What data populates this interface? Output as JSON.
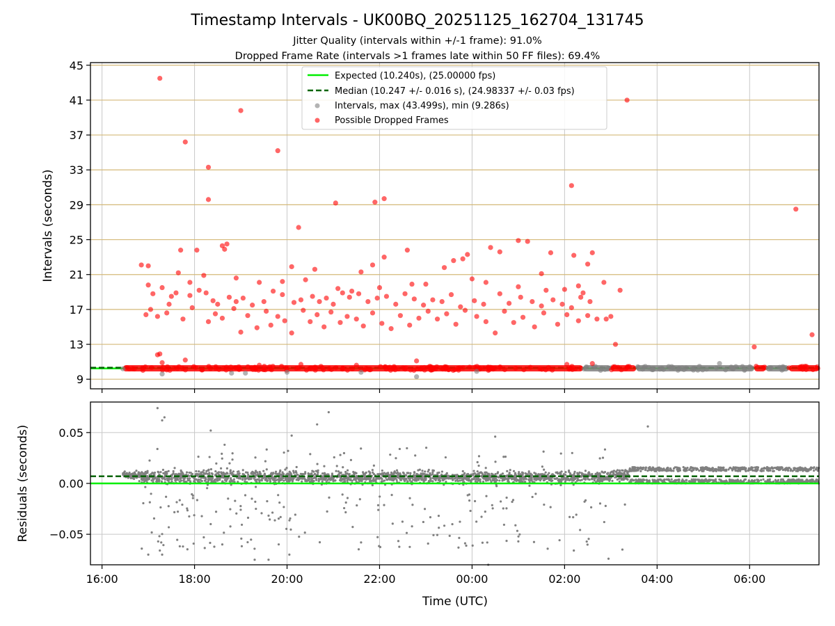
{
  "figure": {
    "title": "Timestamp Intervals - UK00BQ_20251125_162704_131745",
    "subtitle_line1": "Jitter Quality (intervals within +/-1 frame): 91.0%",
    "subtitle_line2": "Dropped Frame Rate (intervals >1 frames late within 50 FF files): 69.4%",
    "x_label": "Time (UTC)",
    "x_ticks": [
      "16:00",
      "18:00",
      "20:00",
      "22:00",
      "00:00",
      "02:00",
      "04:00",
      "06:00"
    ]
  },
  "colors": {
    "expected": "#00ee00",
    "median": "#006400",
    "interval_points": "#808080",
    "dropped_points": "#ff0000",
    "y_grid_top": "#d4b978",
    "grid": "#c8c8c8"
  },
  "chart_data": [
    {
      "type": "scatter",
      "name": "intervals-panel",
      "ylabel": "Intervals (seconds)",
      "xlim_hours": [
        15.75,
        31.5
      ],
      "ylim": [
        7.9,
        45.3
      ],
      "y_ticks": [
        9,
        13,
        17,
        21,
        25,
        29,
        33,
        37,
        41,
        45
      ],
      "grid": "both",
      "legend_position": "top-center",
      "legend": {
        "expected": "Expected (10.240s), (25.00000 fps)",
        "median": "Median (10.247 +/- 0.016 s), (24.98337 +/- 0.03 fps)",
        "intervals": "Intervals, max (43.499s), min (9.286s)",
        "dropped": "Possible Dropped Frames"
      },
      "expected_interval": 10.24,
      "median_interval": 10.247,
      "dense_band": [
        {
          "x_start": 16.45,
          "x_end": 26.4,
          "y": 10.25,
          "series": "dropped"
        },
        {
          "x_start": 26.4,
          "x_end": 27.0,
          "y": 10.25,
          "series": "intervals"
        },
        {
          "x_start": 27.0,
          "x_end": 27.55,
          "y": 10.25,
          "series": "dropped"
        },
        {
          "x_start": 27.55,
          "x_end": 30.1,
          "y": 10.25,
          "series": "intervals"
        },
        {
          "x_start": 30.1,
          "x_end": 30.35,
          "y": 10.25,
          "series": "dropped"
        },
        {
          "x_start": 30.35,
          "x_end": 30.85,
          "y": 10.25,
          "series": "intervals"
        },
        {
          "x_start": 30.85,
          "x_end": 31.5,
          "y": 10.25,
          "series": "dropped"
        }
      ],
      "interval_points": [
        {
          "x": 17.3,
          "y": 9.6
        },
        {
          "x": 18.8,
          "y": 9.7
        },
        {
          "x": 19.1,
          "y": 9.7
        },
        {
          "x": 20.0,
          "y": 9.8
        },
        {
          "x": 21.6,
          "y": 9.8
        },
        {
          "x": 22.8,
          "y": 9.29
        },
        {
          "x": 24.1,
          "y": 9.9
        },
        {
          "x": 29.35,
          "y": 10.8
        },
        {
          "x": 16.45,
          "y": 10.2
        }
      ],
      "dropped_points": [
        {
          "x": 17.25,
          "y": 43.5
        },
        {
          "x": 17.8,
          "y": 36.2
        },
        {
          "x": 18.3,
          "y": 33.3
        },
        {
          "x": 18.3,
          "y": 29.6
        },
        {
          "x": 19.0,
          "y": 39.8
        },
        {
          "x": 19.8,
          "y": 35.2
        },
        {
          "x": 20.25,
          "y": 26.4
        },
        {
          "x": 21.05,
          "y": 29.2
        },
        {
          "x": 21.9,
          "y": 29.3
        },
        {
          "x": 22.1,
          "y": 29.7
        },
        {
          "x": 26.15,
          "y": 31.2
        },
        {
          "x": 27.35,
          "y": 41.0
        },
        {
          "x": 30.1,
          "y": 12.7
        },
        {
          "x": 31.0,
          "y": 28.5
        },
        {
          "x": 31.35,
          "y": 14.1
        },
        {
          "x": 27.1,
          "y": 13.0
        },
        {
          "x": 27.2,
          "y": 19.2
        },
        {
          "x": 26.9,
          "y": 15.9
        },
        {
          "x": 26.85,
          "y": 20.1
        },
        {
          "x": 27.0,
          "y": 16.2
        },
        {
          "x": 25.0,
          "y": 24.9
        },
        {
          "x": 25.2,
          "y": 24.8
        },
        {
          "x": 24.4,
          "y": 24.1
        },
        {
          "x": 24.6,
          "y": 23.6
        },
        {
          "x": 23.9,
          "y": 23.3
        },
        {
          "x": 22.6,
          "y": 23.8
        },
        {
          "x": 23.8,
          "y": 22.8
        },
        {
          "x": 25.7,
          "y": 23.5
        },
        {
          "x": 26.2,
          "y": 23.2
        },
        {
          "x": 26.6,
          "y": 23.5
        },
        {
          "x": 16.85,
          "y": 22.1
        },
        {
          "x": 17.0,
          "y": 22.0
        },
        {
          "x": 17.65,
          "y": 21.2
        },
        {
          "x": 17.7,
          "y": 23.8
        },
        {
          "x": 18.05,
          "y": 23.8
        },
        {
          "x": 18.6,
          "y": 24.3
        },
        {
          "x": 18.7,
          "y": 24.5
        },
        {
          "x": 18.65,
          "y": 23.9
        },
        {
          "x": 20.1,
          "y": 21.9
        },
        {
          "x": 20.6,
          "y": 21.6
        },
        {
          "x": 21.6,
          "y": 21.3
        },
        {
          "x": 21.85,
          "y": 22.1
        },
        {
          "x": 22.1,
          "y": 23.0
        },
        {
          "x": 23.4,
          "y": 21.8
        },
        {
          "x": 23.6,
          "y": 22.6
        },
        {
          "x": 25.5,
          "y": 21.1
        },
        {
          "x": 26.5,
          "y": 22.2
        },
        {
          "x": 17.9,
          "y": 20.1
        },
        {
          "x": 18.2,
          "y": 20.9
        },
        {
          "x": 18.9,
          "y": 20.6
        },
        {
          "x": 19.4,
          "y": 20.1
        },
        {
          "x": 19.9,
          "y": 20.2
        },
        {
          "x": 20.4,
          "y": 20.4
        },
        {
          "x": 21.1,
          "y": 19.4
        },
        {
          "x": 21.4,
          "y": 19.1
        },
        {
          "x": 22.0,
          "y": 19.5
        },
        {
          "x": 22.7,
          "y": 19.9
        },
        {
          "x": 23.0,
          "y": 19.9
        },
        {
          "x": 24.0,
          "y": 20.5
        },
        {
          "x": 24.3,
          "y": 20.1
        },
        {
          "x": 25.0,
          "y": 19.6
        },
        {
          "x": 25.6,
          "y": 19.2
        },
        {
          "x": 26.0,
          "y": 19.3
        },
        {
          "x": 26.3,
          "y": 19.7
        },
        {
          "x": 26.4,
          "y": 18.9
        },
        {
          "x": 17.0,
          "y": 19.8
        },
        {
          "x": 17.1,
          "y": 18.8
        },
        {
          "x": 17.3,
          "y": 19.5
        },
        {
          "x": 17.5,
          "y": 18.5
        },
        {
          "x": 17.45,
          "y": 17.6
        },
        {
          "x": 17.6,
          "y": 18.9
        },
        {
          "x": 17.9,
          "y": 18.6
        },
        {
          "x": 18.1,
          "y": 19.2
        },
        {
          "x": 18.25,
          "y": 18.9
        },
        {
          "x": 18.4,
          "y": 18.0
        },
        {
          "x": 18.5,
          "y": 17.6
        },
        {
          "x": 18.75,
          "y": 18.4
        },
        {
          "x": 18.9,
          "y": 17.9
        },
        {
          "x": 19.05,
          "y": 18.3
        },
        {
          "x": 19.25,
          "y": 17.5
        },
        {
          "x": 19.5,
          "y": 17.9
        },
        {
          "x": 19.7,
          "y": 19.1
        },
        {
          "x": 19.9,
          "y": 18.7
        },
        {
          "x": 20.15,
          "y": 17.8
        },
        {
          "x": 20.3,
          "y": 18.1
        },
        {
          "x": 20.55,
          "y": 18.5
        },
        {
          "x": 20.7,
          "y": 17.9
        },
        {
          "x": 20.85,
          "y": 18.3
        },
        {
          "x": 21.0,
          "y": 17.6
        },
        {
          "x": 21.2,
          "y": 18.9
        },
        {
          "x": 21.35,
          "y": 18.4
        },
        {
          "x": 21.55,
          "y": 18.8
        },
        {
          "x": 21.75,
          "y": 17.9
        },
        {
          "x": 21.95,
          "y": 18.3
        },
        {
          "x": 22.15,
          "y": 18.5
        },
        {
          "x": 22.35,
          "y": 17.6
        },
        {
          "x": 22.55,
          "y": 18.8
        },
        {
          "x": 22.75,
          "y": 18.2
        },
        {
          "x": 22.95,
          "y": 17.5
        },
        {
          "x": 23.15,
          "y": 18.1
        },
        {
          "x": 23.35,
          "y": 17.9
        },
        {
          "x": 23.55,
          "y": 18.7
        },
        {
          "x": 23.75,
          "y": 17.3
        },
        {
          "x": 24.05,
          "y": 18.0
        },
        {
          "x": 24.25,
          "y": 17.6
        },
        {
          "x": 24.6,
          "y": 18.8
        },
        {
          "x": 24.8,
          "y": 17.7
        },
        {
          "x": 25.05,
          "y": 18.4
        },
        {
          "x": 25.3,
          "y": 17.9
        },
        {
          "x": 25.5,
          "y": 17.4
        },
        {
          "x": 25.75,
          "y": 18.1
        },
        {
          "x": 25.95,
          "y": 17.6
        },
        {
          "x": 26.15,
          "y": 17.2
        },
        {
          "x": 26.35,
          "y": 18.4
        },
        {
          "x": 26.55,
          "y": 17.9
        },
        {
          "x": 16.95,
          "y": 16.4
        },
        {
          "x": 17.05,
          "y": 17.0
        },
        {
          "x": 17.2,
          "y": 16.2
        },
        {
          "x": 17.4,
          "y": 16.6
        },
        {
          "x": 17.75,
          "y": 15.9
        },
        {
          "x": 17.95,
          "y": 17.2
        },
        {
          "x": 18.3,
          "y": 15.6
        },
        {
          "x": 18.45,
          "y": 16.5
        },
        {
          "x": 18.6,
          "y": 16.0
        },
        {
          "x": 18.85,
          "y": 17.1
        },
        {
          "x": 19.0,
          "y": 14.4
        },
        {
          "x": 19.15,
          "y": 16.3
        },
        {
          "x": 19.35,
          "y": 14.9
        },
        {
          "x": 19.55,
          "y": 16.8
        },
        {
          "x": 19.65,
          "y": 15.2
        },
        {
          "x": 19.8,
          "y": 16.2
        },
        {
          "x": 19.95,
          "y": 15.7
        },
        {
          "x": 20.1,
          "y": 14.3
        },
        {
          "x": 20.35,
          "y": 16.9
        },
        {
          "x": 20.5,
          "y": 15.6
        },
        {
          "x": 20.65,
          "y": 16.4
        },
        {
          "x": 20.8,
          "y": 15.0
        },
        {
          "x": 20.95,
          "y": 16.7
        },
        {
          "x": 21.15,
          "y": 15.5
        },
        {
          "x": 21.3,
          "y": 16.2
        },
        {
          "x": 21.5,
          "y": 15.9
        },
        {
          "x": 21.65,
          "y": 15.1
        },
        {
          "x": 21.85,
          "y": 16.6
        },
        {
          "x": 22.05,
          "y": 15.4
        },
        {
          "x": 22.25,
          "y": 14.8
        },
        {
          "x": 22.45,
          "y": 16.3
        },
        {
          "x": 22.65,
          "y": 15.2
        },
        {
          "x": 22.85,
          "y": 16.0
        },
        {
          "x": 23.05,
          "y": 16.8
        },
        {
          "x": 23.25,
          "y": 15.9
        },
        {
          "x": 23.45,
          "y": 16.5
        },
        {
          "x": 23.65,
          "y": 15.3
        },
        {
          "x": 23.85,
          "y": 16.9
        },
        {
          "x": 24.1,
          "y": 16.2
        },
        {
          "x": 24.3,
          "y": 15.6
        },
        {
          "x": 24.5,
          "y": 14.3
        },
        {
          "x": 24.7,
          "y": 16.8
        },
        {
          "x": 24.9,
          "y": 15.5
        },
        {
          "x": 25.1,
          "y": 16.1
        },
        {
          "x": 25.35,
          "y": 15.0
        },
        {
          "x": 25.55,
          "y": 16.6
        },
        {
          "x": 25.85,
          "y": 15.3
        },
        {
          "x": 26.05,
          "y": 16.4
        },
        {
          "x": 26.3,
          "y": 15.7
        },
        {
          "x": 26.5,
          "y": 16.3
        },
        {
          "x": 26.7,
          "y": 15.9
        },
        {
          "x": 17.2,
          "y": 11.8
        },
        {
          "x": 17.25,
          "y": 11.9
        },
        {
          "x": 17.3,
          "y": 10.9
        },
        {
          "x": 17.8,
          "y": 11.2
        },
        {
          "x": 22.8,
          "y": 11.1
        },
        {
          "x": 26.05,
          "y": 10.7
        },
        {
          "x": 26.6,
          "y": 10.8
        },
        {
          "x": 21.5,
          "y": 10.6
        },
        {
          "x": 19.4,
          "y": 10.6
        },
        {
          "x": 20.3,
          "y": 10.7
        }
      ]
    },
    {
      "type": "scatter",
      "name": "residuals-panel",
      "ylabel": "Residuals (seconds)",
      "xlim_hours": [
        15.75,
        31.5
      ],
      "ylim": [
        -0.08,
        0.08
      ],
      "y_ticks": [
        -0.05,
        0.0,
        0.05
      ],
      "y_tick_labels": [
        "−0.05",
        "0.00",
        "0.05"
      ],
      "grid": "both",
      "expected_residual": 0.0,
      "median_residual": 0.007,
      "segments": [
        {
          "x_start": 16.45,
          "x_end": 16.85,
          "center": 0.008,
          "spread": 0.003,
          "outlier_rate": 0.0
        },
        {
          "x_start": 16.85,
          "x_end": 20.0,
          "center": 0.006,
          "spread": 0.006,
          "outlier_rate": 0.35
        },
        {
          "x_start": 20.0,
          "x_end": 25.0,
          "center": 0.006,
          "spread": 0.005,
          "outlier_rate": 0.22
        },
        {
          "x_start": 25.0,
          "x_end": 27.0,
          "center": 0.006,
          "spread": 0.005,
          "outlier_rate": 0.15
        },
        {
          "x_start": 27.0,
          "x_end": 27.4,
          "center": 0.008,
          "spread": 0.005,
          "outlier_rate": 0.1
        },
        {
          "x_start": 27.4,
          "x_end": 31.5,
          "center": 0.007,
          "spread": 0.008,
          "outlier_rate": 0.0
        }
      ],
      "outlier_points": [
        {
          "x": 17.2,
          "y": 0.074
        },
        {
          "x": 17.35,
          "y": 0.065
        },
        {
          "x": 17.3,
          "y": 0.062
        },
        {
          "x": 18.35,
          "y": 0.052
        },
        {
          "x": 20.1,
          "y": 0.047
        },
        {
          "x": 20.65,
          "y": 0.058
        },
        {
          "x": 20.9,
          "y": 0.07
        },
        {
          "x": 24.5,
          "y": 0.046
        },
        {
          "x": 27.8,
          "y": 0.056
        },
        {
          "x": 18.65,
          "y": 0.038
        },
        {
          "x": 17.0,
          "y": -0.07
        },
        {
          "x": 17.3,
          "y": -0.07
        },
        {
          "x": 17.25,
          "y": -0.066
        },
        {
          "x": 19.3,
          "y": -0.075
        },
        {
          "x": 19.6,
          "y": -0.075
        },
        {
          "x": 20.05,
          "y": -0.07
        },
        {
          "x": 24.35,
          "y": -0.08
        },
        {
          "x": 25.0,
          "y": -0.057
        },
        {
          "x": 26.2,
          "y": -0.066
        },
        {
          "x": 26.95,
          "y": -0.074
        },
        {
          "x": 27.25,
          "y": -0.065
        },
        {
          "x": 17.75,
          "y": -0.062
        },
        {
          "x": 18.2,
          "y": -0.053
        },
        {
          "x": 18.6,
          "y": -0.06
        },
        {
          "x": 21.6,
          "y": -0.058
        }
      ]
    }
  ]
}
